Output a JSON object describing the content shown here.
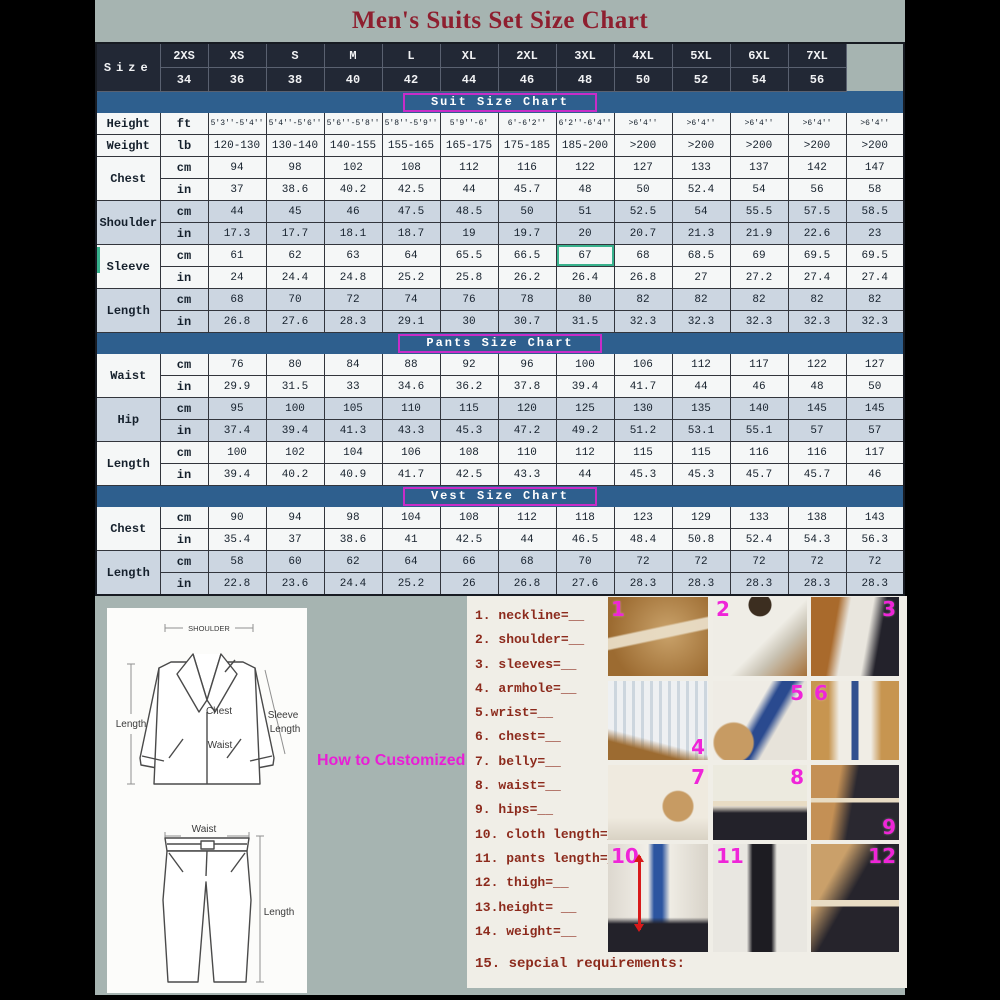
{
  "title": "Men's Suits Set Size Chart",
  "how_to_label": "How to Customized",
  "colors": {
    "title_text": "#8e1f2f",
    "background": "#a6b4b1",
    "side_bars": "#000000",
    "header_bg": "#222835",
    "section_band": "#2e5f8e",
    "section_band_border": "#c82cc8",
    "alt_row": "#ccd6e1",
    "highlight_border": "#38b28d",
    "list_text": "#8c2a1c",
    "magenta_accent": "#ef25d8"
  },
  "chart_data": {
    "type": "table",
    "title": "Men's Suits Set Size Chart",
    "size_label": "Size",
    "size_names": [
      "2XS",
      "XS",
      "S",
      "M",
      "L",
      "XL",
      "2XL",
      "3XL",
      "4XL",
      "5XL",
      "6XL",
      "7XL"
    ],
    "size_numbers": [
      "34",
      "36",
      "38",
      "40",
      "42",
      "44",
      "46",
      "48",
      "50",
      "52",
      "54",
      "56"
    ],
    "sections": [
      {
        "title": "Suit Size Chart",
        "groups": [
          {
            "label": "Height",
            "tint": false,
            "rows": [
              {
                "unit": "ft",
                "small": true,
                "values": [
                  "5'3''-5'4''",
                  "5'4''-5'6''",
                  "5'6''-5'8''",
                  "5'8''-5'9''",
                  "5'9''-6'",
                  "6'-6'2''",
                  "6'2''-6'4''",
                  ">6'4''",
                  ">6'4''",
                  ">6'4''",
                  ">6'4''",
                  ">6'4''"
                ]
              }
            ]
          },
          {
            "label": "Weight",
            "tint": false,
            "rows": [
              {
                "unit": "lb",
                "values": [
                  "120-130",
                  "130-140",
                  "140-155",
                  "155-165",
                  "165-175",
                  "175-185",
                  "185-200",
                  ">200",
                  ">200",
                  ">200",
                  ">200",
                  ">200"
                ]
              }
            ]
          },
          {
            "label": "Chest",
            "tint": false,
            "rows": [
              {
                "unit": "cm",
                "values": [
                  "94",
                  "98",
                  "102",
                  "108",
                  "112",
                  "116",
                  "122",
                  "127",
                  "133",
                  "137",
                  "142",
                  "147"
                ]
              },
              {
                "unit": "in",
                "values": [
                  "37",
                  "38.6",
                  "40.2",
                  "42.5",
                  "44",
                  "45.7",
                  "48",
                  "50",
                  "52.4",
                  "54",
                  "56",
                  "58"
                ]
              }
            ]
          },
          {
            "label": "Shoulder",
            "tint": true,
            "rows": [
              {
                "unit": "cm",
                "values": [
                  "44",
                  "45",
                  "46",
                  "47.5",
                  "48.5",
                  "50",
                  "51",
                  "52.5",
                  "54",
                  "55.5",
                  "57.5",
                  "58.5"
                ]
              },
              {
                "unit": "in",
                "values": [
                  "17.3",
                  "17.7",
                  "18.1",
                  "18.7",
                  "19",
                  "19.7",
                  "20",
                  "20.7",
                  "21.3",
                  "21.9",
                  "22.6",
                  "23"
                ]
              }
            ]
          },
          {
            "label": "Sleeve",
            "tint": false,
            "teal_mark": true,
            "rows": [
              {
                "unit": "cm",
                "highlight_index": 6,
                "values": [
                  "61",
                  "62",
                  "63",
                  "64",
                  "65.5",
                  "66.5",
                  "67",
                  "68",
                  "68.5",
                  "69",
                  "69.5",
                  "69.5"
                ]
              },
              {
                "unit": "in",
                "values": [
                  "24",
                  "24.4",
                  "24.8",
                  "25.2",
                  "25.8",
                  "26.2",
                  "26.4",
                  "26.8",
                  "27",
                  "27.2",
                  "27.4",
                  "27.4"
                ]
              }
            ]
          },
          {
            "label": "Length",
            "tint": true,
            "rows": [
              {
                "unit": "cm",
                "values": [
                  "68",
                  "70",
                  "72",
                  "74",
                  "76",
                  "78",
                  "80",
                  "82",
                  "82",
                  "82",
                  "82",
                  "82"
                ]
              },
              {
                "unit": "in",
                "values": [
                  "26.8",
                  "27.6",
                  "28.3",
                  "29.1",
                  "30",
                  "30.7",
                  "31.5",
                  "32.3",
                  "32.3",
                  "32.3",
                  "32.3",
                  "32.3"
                ]
              }
            ]
          }
        ]
      },
      {
        "title": "Pants Size Chart",
        "groups": [
          {
            "label": "Waist",
            "tint": false,
            "rows": [
              {
                "unit": "cm",
                "values": [
                  "76",
                  "80",
                  "84",
                  "88",
                  "92",
                  "96",
                  "100",
                  "106",
                  "112",
                  "117",
                  "122",
                  "127"
                ]
              },
              {
                "unit": "in",
                "values": [
                  "29.9",
                  "31.5",
                  "33",
                  "34.6",
                  "36.2",
                  "37.8",
                  "39.4",
                  "41.7",
                  "44",
                  "46",
                  "48",
                  "50"
                ]
              }
            ]
          },
          {
            "label": "Hip",
            "tint": true,
            "rows": [
              {
                "unit": "cm",
                "values": [
                  "95",
                  "100",
                  "105",
                  "110",
                  "115",
                  "120",
                  "125",
                  "130",
                  "135",
                  "140",
                  "145",
                  "145"
                ]
              },
              {
                "unit": "in",
                "values": [
                  "37.4",
                  "39.4",
                  "41.3",
                  "43.3",
                  "45.3",
                  "47.2",
                  "49.2",
                  "51.2",
                  "53.1",
                  "55.1",
                  "57",
                  "57"
                ]
              }
            ]
          },
          {
            "label": "Length",
            "tint": false,
            "rows": [
              {
                "unit": "cm",
                "values": [
                  "100",
                  "102",
                  "104",
                  "106",
                  "108",
                  "110",
                  "112",
                  "115",
                  "115",
                  "116",
                  "116",
                  "117"
                ]
              },
              {
                "unit": "in",
                "values": [
                  "39.4",
                  "40.2",
                  "40.9",
                  "41.7",
                  "42.5",
                  "43.3",
                  "44",
                  "45.3",
                  "45.3",
                  "45.7",
                  "45.7",
                  "46"
                ]
              }
            ]
          }
        ]
      },
      {
        "title": "Vest Size Chart",
        "groups": [
          {
            "label": "Chest",
            "tint": false,
            "rows": [
              {
                "unit": "cm",
                "values": [
                  "90",
                  "94",
                  "98",
                  "104",
                  "108",
                  "112",
                  "118",
                  "123",
                  "129",
                  "133",
                  "138",
                  "143"
                ]
              },
              {
                "unit": "in",
                "values": [
                  "35.4",
                  "37",
                  "38.6",
                  "41",
                  "42.5",
                  "44",
                  "46.5",
                  "48.4",
                  "50.8",
                  "52.4",
                  "54.3",
                  "56.3"
                ]
              }
            ]
          },
          {
            "label": "Length",
            "tint": true,
            "rows": [
              {
                "unit": "cm",
                "values": [
                  "58",
                  "60",
                  "62",
                  "64",
                  "66",
                  "68",
                  "70",
                  "72",
                  "72",
                  "72",
                  "72",
                  "72"
                ]
              },
              {
                "unit": "in",
                "values": [
                  "22.8",
                  "23.6",
                  "24.4",
                  "25.2",
                  "26",
                  "26.8",
                  "27.6",
                  "28.3",
                  "28.3",
                  "28.3",
                  "28.3",
                  "28.3"
                ]
              }
            ]
          }
        ]
      }
    ]
  },
  "diagram": {
    "jacket": {
      "shoulder": "SHOULDER",
      "length": "Length",
      "chest": "Chest",
      "waist": "Waist",
      "sleeve_length_1": "Sleeve",
      "sleeve_length_2": "Length"
    },
    "pants": {
      "waist": "Waist",
      "length": "Length"
    }
  },
  "measure_list": {
    "items": [
      "1. neckline=__",
      "2. shoulder=__",
      "3. sleeves=__",
      "4. armhole=__",
      "5.wrist=__",
      "6. chest=__",
      "7. belly=__",
      "8. waist=__",
      "9. hips=__",
      "10. cloth length=__",
      "11. pants length=__",
      "12. thigh=__",
      "13.height= __",
      "14. weight=__"
    ],
    "special": "15. sepcial requirements:"
  },
  "photos": [
    {
      "num": "1",
      "pos": "tl",
      "scene": "neckline"
    },
    {
      "num": "2",
      "pos": "tl",
      "scene": "shoulder"
    },
    {
      "num": "3",
      "pos": "tr",
      "scene": "sleeves"
    },
    {
      "num": "4",
      "pos": "br",
      "scene": "armhole"
    },
    {
      "num": "5",
      "pos": "tr",
      "scene": "wrist"
    },
    {
      "num": "6",
      "pos": "tl",
      "scene": "chest"
    },
    {
      "num": "7",
      "pos": "tr",
      "scene": "belly"
    },
    {
      "num": "8",
      "pos": "tr",
      "scene": "waist"
    },
    {
      "num": "9",
      "pos": "br",
      "scene": "hips"
    },
    {
      "num": "10",
      "pos": "tl",
      "scene": "cloth-length"
    },
    {
      "num": "11",
      "pos": "tl",
      "scene": "pants-length"
    },
    {
      "num": "12",
      "pos": "tr",
      "scene": "thigh"
    }
  ]
}
